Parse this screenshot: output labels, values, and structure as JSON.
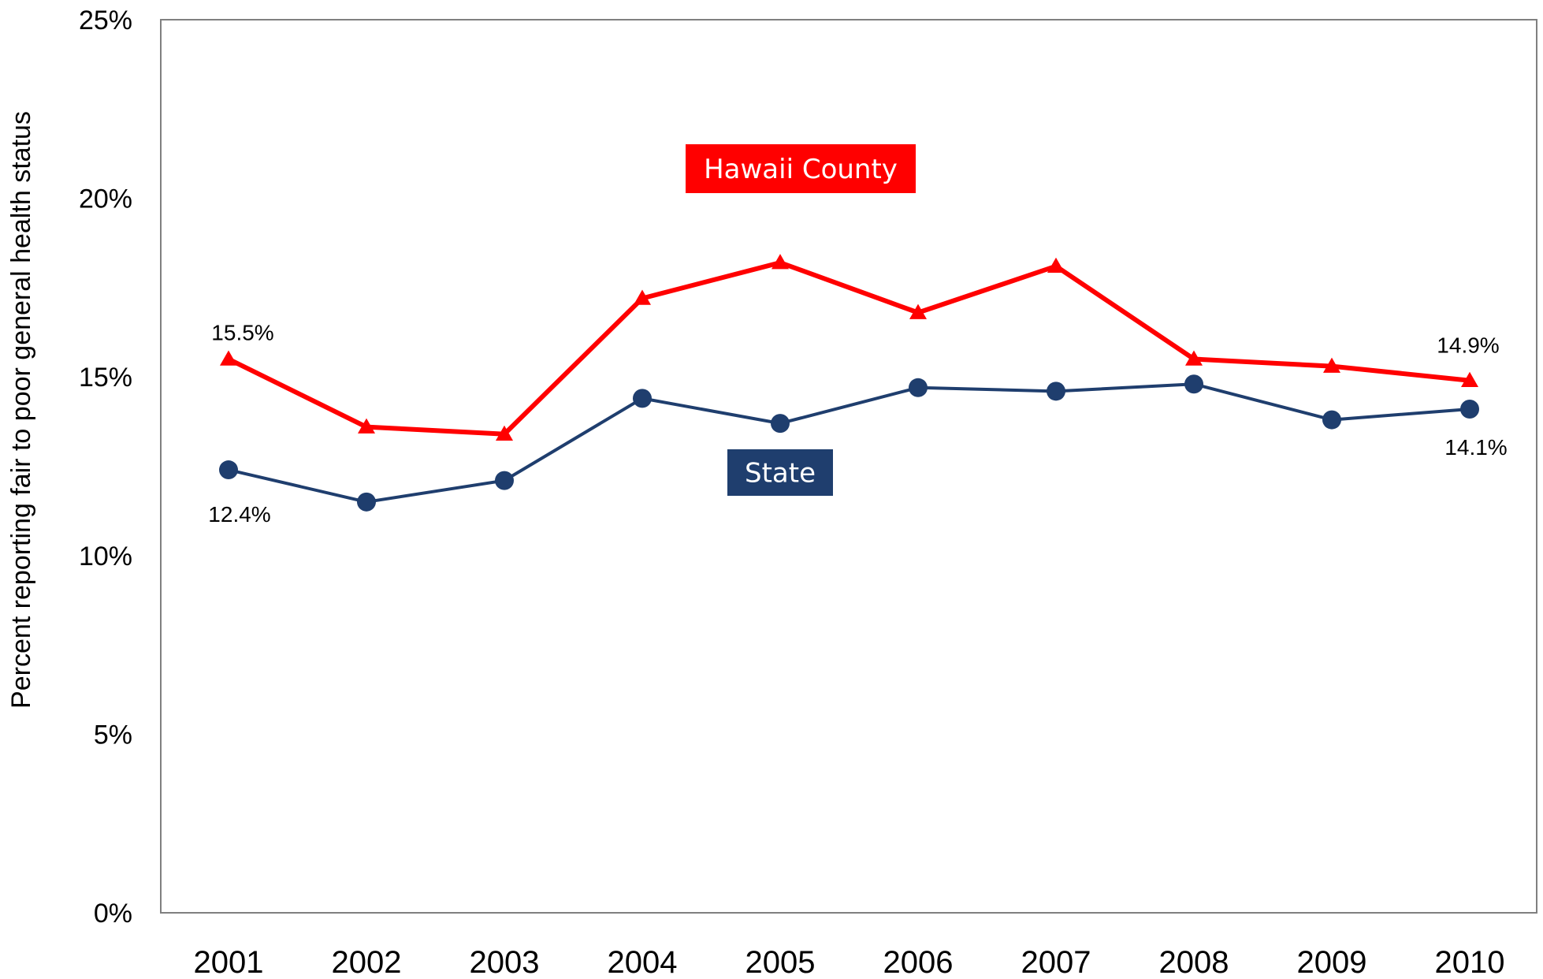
{
  "chart_data": {
    "type": "line",
    "title": "",
    "xlabel": "",
    "ylabel": "Percent reporting fair to poor general health status",
    "ylim": [
      0,
      25
    ],
    "y_tick_labels": [
      "0%",
      "5%",
      "10%",
      "15%",
      "20%",
      "25%"
    ],
    "y_tick_values": [
      0,
      5,
      10,
      15,
      20,
      25
    ],
    "grid": false,
    "categories": [
      "2001",
      "2002",
      "2003",
      "2004",
      "2005",
      "2006",
      "2007",
      "2008",
      "2009",
      "2010"
    ],
    "series": [
      {
        "name": "Hawaii County",
        "color": "#ff0000",
        "marker": "triangle",
        "values": [
          15.5,
          13.6,
          13.4,
          17.2,
          18.2,
          16.8,
          18.1,
          15.5,
          15.3,
          14.9
        ],
        "data_labels": [
          {
            "index": 0,
            "text": "15.5%"
          },
          {
            "index": 9,
            "text": "14.9%"
          }
        ]
      },
      {
        "name": "State",
        "color": "#1f3e6e",
        "marker": "circle",
        "values": [
          12.4,
          11.5,
          12.1,
          14.4,
          13.7,
          14.7,
          14.6,
          14.8,
          13.8,
          14.1
        ],
        "data_labels": [
          {
            "index": 0,
            "text": "12.4%"
          },
          {
            "index": 9,
            "text": "14.1%"
          }
        ]
      }
    ]
  }
}
